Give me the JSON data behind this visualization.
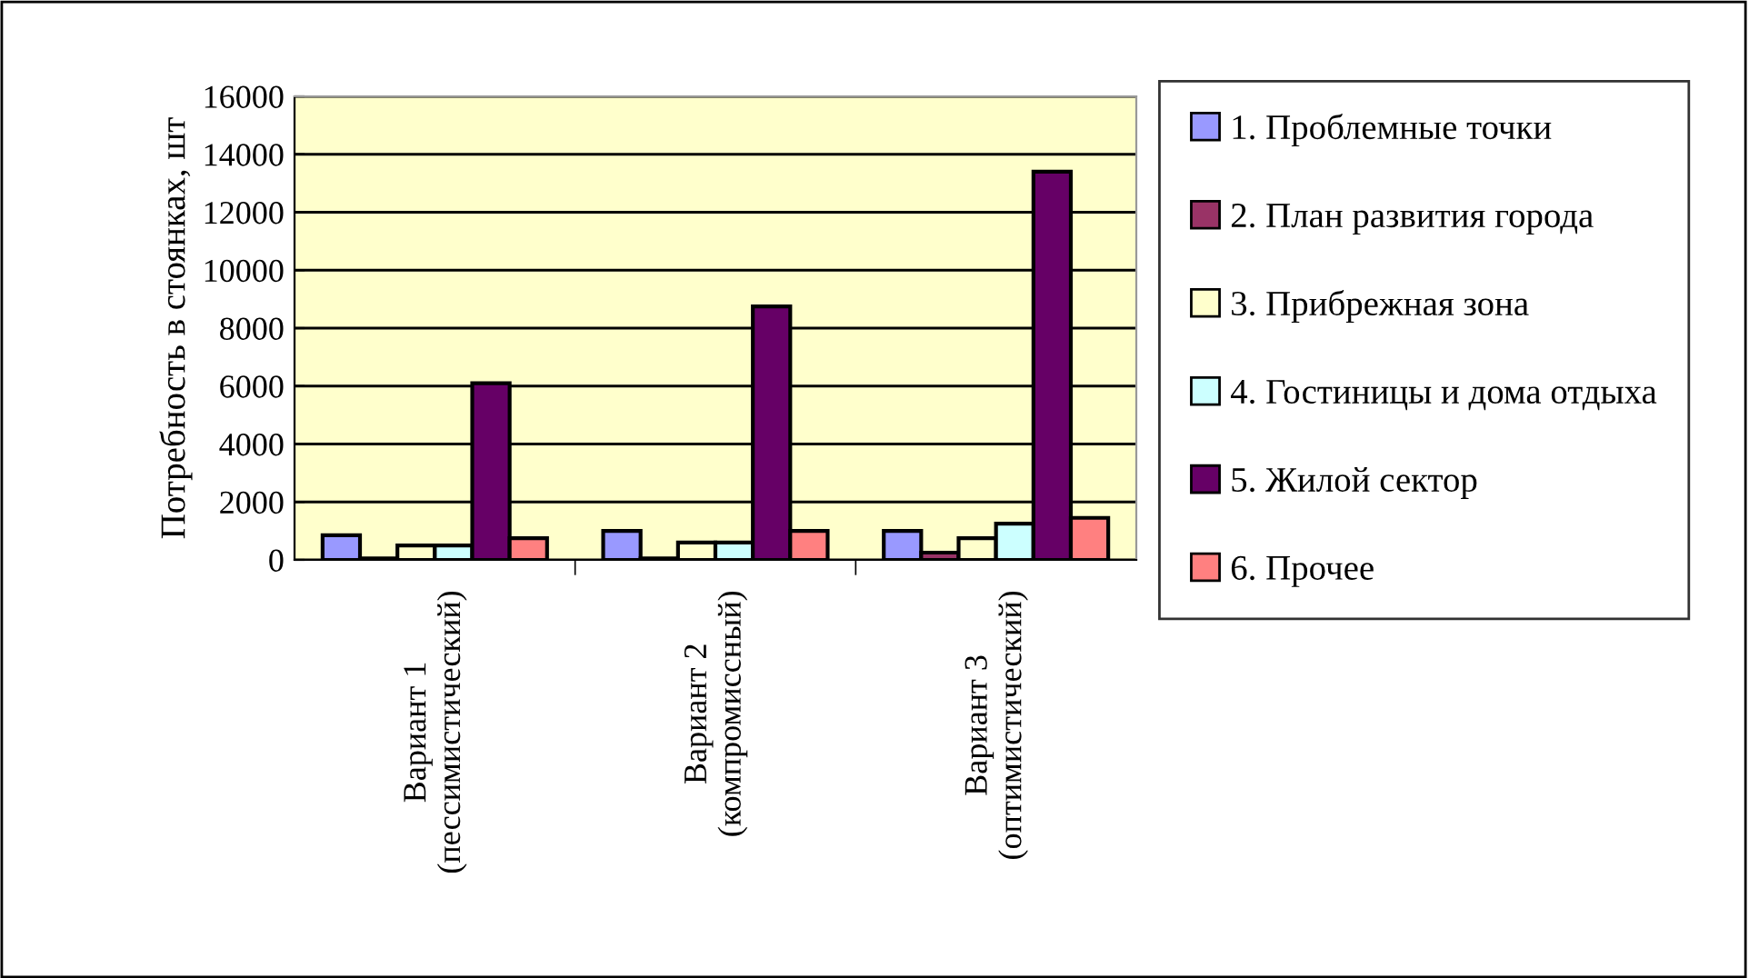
{
  "chart_data": {
    "type": "bar",
    "ylabel": "Потребность в стоянках, шт",
    "categories": [
      "Вариант 1\n(пессимистический)",
      "Вариант 2\n(компромиссный)",
      "Вариант 3\n(оптимистический)"
    ],
    "series": [
      {
        "name": "1. Проблемные точки",
        "color": "#9999ff",
        "values": [
          850,
          1000,
          1000
        ]
      },
      {
        "name": "2. План развития города",
        "color": "#993366",
        "values": [
          50,
          50,
          250
        ]
      },
      {
        "name": "3. Прибрежная зона",
        "color": "#ffffcc",
        "values": [
          500,
          600,
          750
        ]
      },
      {
        "name": "4. Гостиницы и дома отдыха",
        "color": "#ccffff",
        "values": [
          500,
          600,
          1250
        ]
      },
      {
        "name": "5. Жилой сектор",
        "color": "#660066",
        "values": [
          6100,
          8750,
          13400
        ]
      },
      {
        "name": "6. Прочее",
        "color": "#ff8080",
        "values": [
          750,
          1000,
          1450
        ]
      }
    ],
    "ylim": [
      0,
      16000
    ],
    "yticks": [
      0,
      2000,
      4000,
      6000,
      8000,
      10000,
      12000,
      14000,
      16000
    ],
    "grid": "y",
    "legend": "right"
  }
}
